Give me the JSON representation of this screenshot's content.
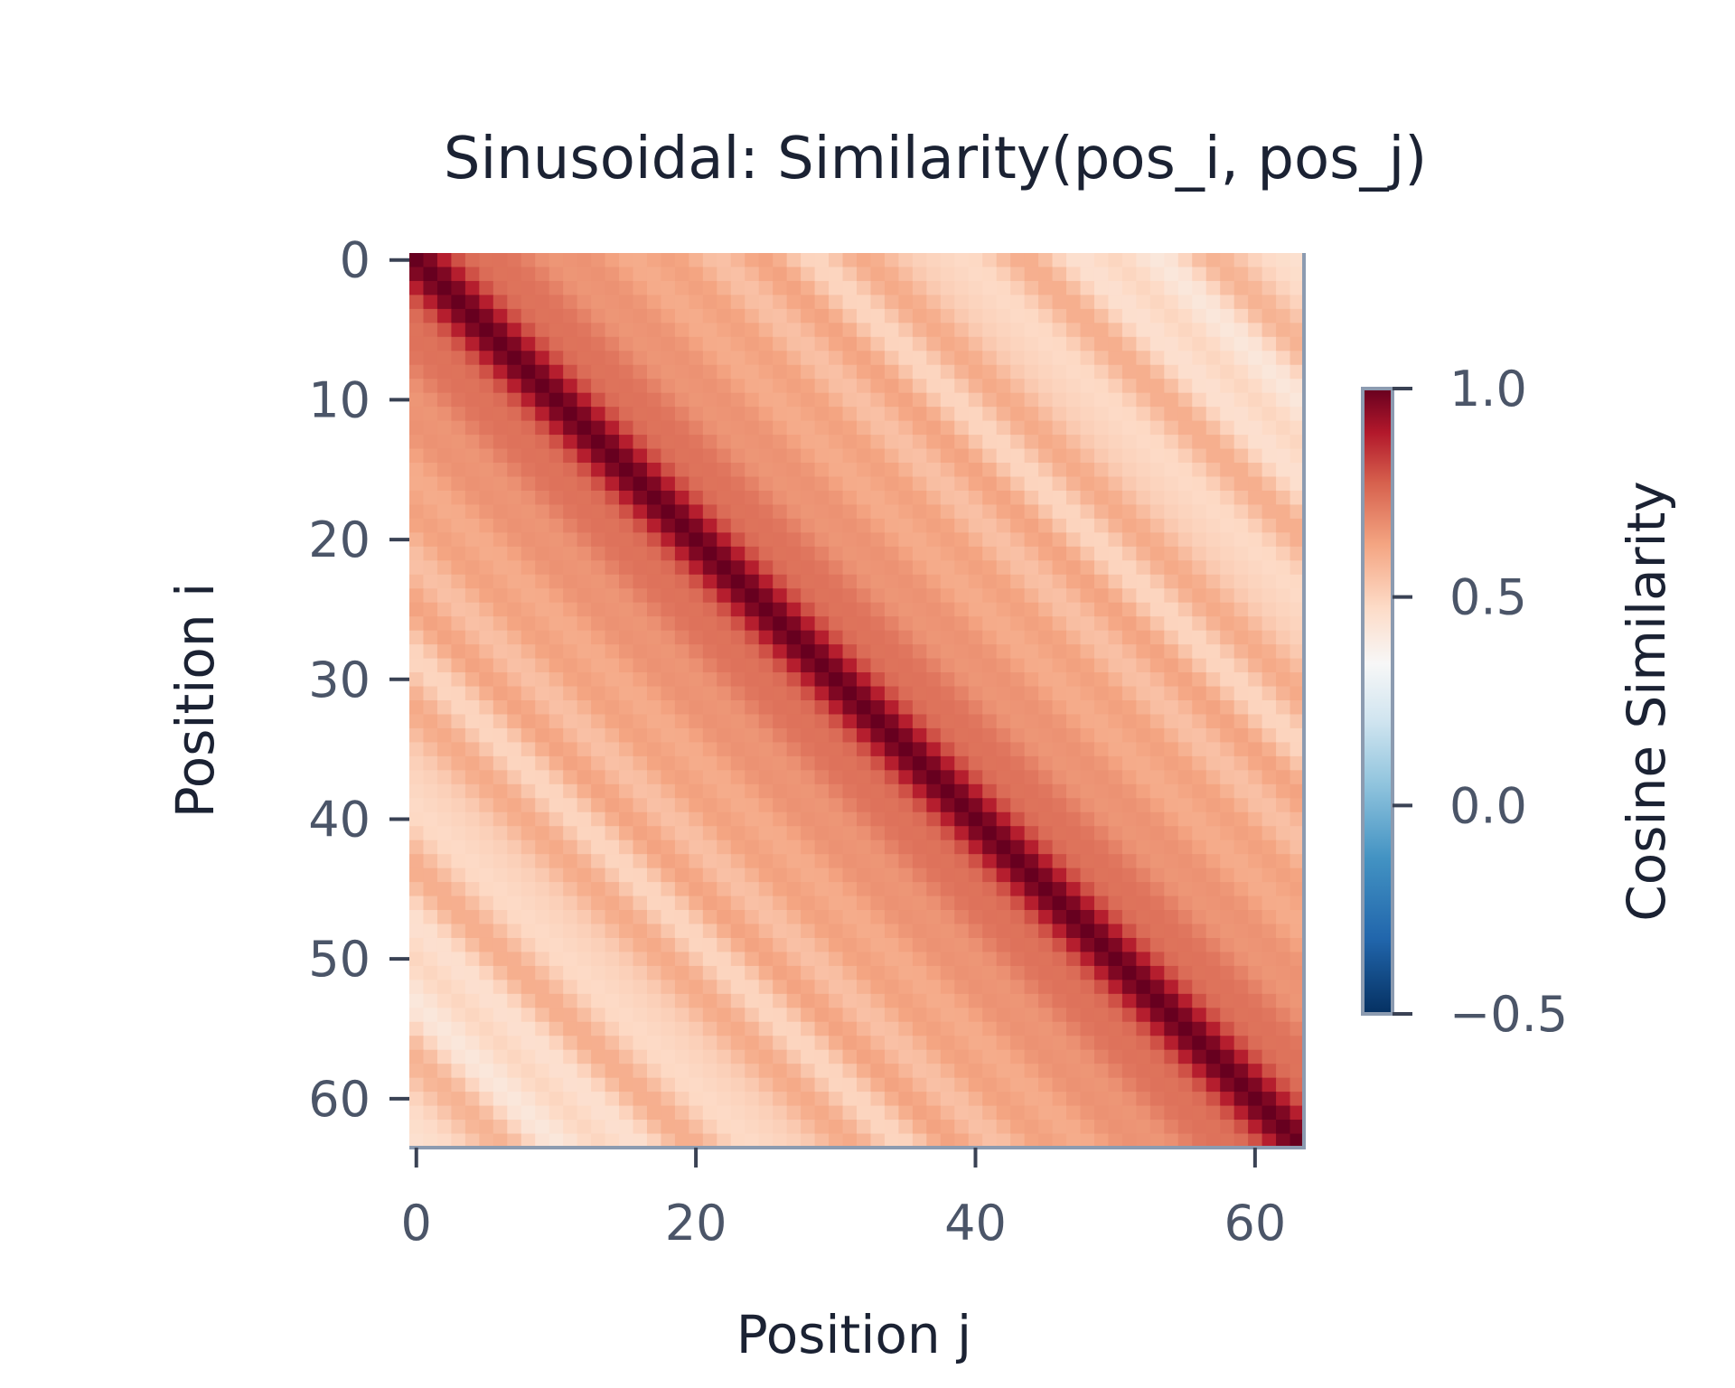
{
  "chart_data": {
    "type": "heatmap",
    "title": "Sinusoidal: Similarity(pos_i, pos_j)",
    "xlabel": "Position j",
    "ylabel": "Position i",
    "x_range": [
      0,
      63
    ],
    "y_range": [
      0,
      63
    ],
    "x_ticks": [
      0,
      20,
      40,
      60
    ],
    "y_ticks": [
      0,
      10,
      20,
      30,
      40,
      50,
      60
    ],
    "matrix_size": 64,
    "values_description_free": true,
    "colorbar": {
      "label": "Cosine Similarity",
      "colormap": "RdBu_r",
      "vmin": -0.5,
      "vmax": 1.0,
      "ticks": [
        1.0,
        0.5,
        0.0,
        -0.5
      ],
      "tick_labels": [
        "1.0",
        "0.5",
        "0.0",
        "−0.5"
      ]
    },
    "model": {
      "kind": "sinusoidal_positional_encoding",
      "d_model": 64
    }
  }
}
